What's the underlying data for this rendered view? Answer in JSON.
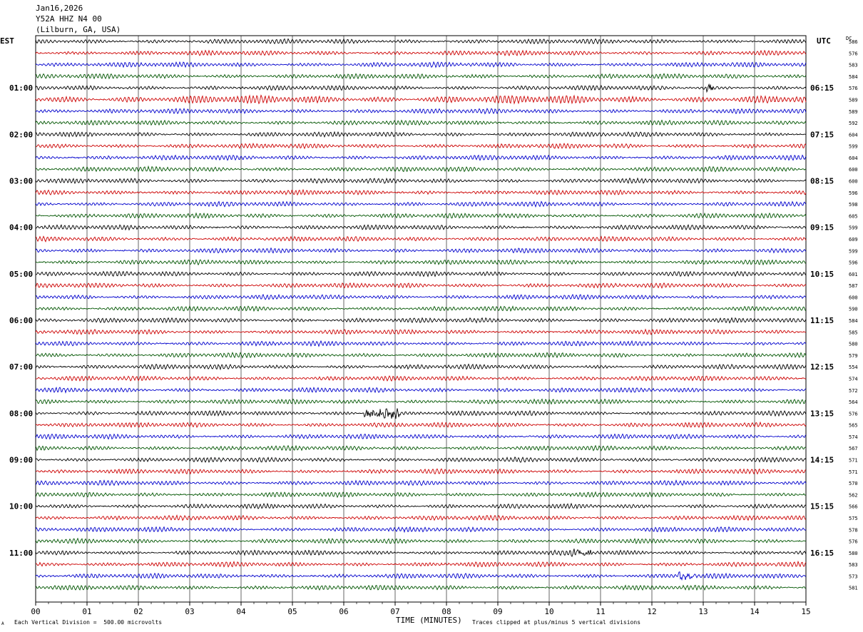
{
  "header": {
    "date": "Jan16,2026",
    "station": "Y52A HHZ N4 00",
    "location": "(Lilburn, GA, USA)"
  },
  "left_tz": "EST",
  "right_tz": "UTC",
  "dc_label": "DC",
  "footer": {
    "left_note": "Each Vertical Division =  500.00 microvolts",
    "right_note": "Traces clipped at plus/minus 5 vertical divisions",
    "corner": "A"
  },
  "colors": {
    "trace_cycle": [
      "#000000",
      "#cc0000",
      "#0000cc",
      "#005500"
    ],
    "grid": "#000000"
  },
  "chart_data": {
    "type": "line",
    "title": "",
    "xlabel": "TIME (MINUTES)",
    "ylabel": "",
    "xlim": [
      0,
      15
    ],
    "x_ticks": [
      "00",
      "01",
      "02",
      "03",
      "04",
      "05",
      "06",
      "07",
      "08",
      "09",
      "10",
      "11",
      "12",
      "13",
      "14",
      "15"
    ],
    "grid": true,
    "rows_per_hour": 4,
    "minutes_per_row": 15,
    "left_hour_labels": [
      "01:00",
      "02:00",
      "03:00",
      "04:00",
      "05:00",
      "06:00",
      "07:00",
      "08:00",
      "09:00",
      "10:00",
      "11:00"
    ],
    "right_hour_labels": [
      "06:15",
      "07:15",
      "08:15",
      "09:15",
      "10:15",
      "11:15",
      "12:15",
      "13:15",
      "14:15",
      "15:15",
      "16:15"
    ],
    "dc_offsets": [
      586,
      576,
      583,
      584,
      576,
      589,
      589,
      592,
      604,
      599,
      604,
      600,
      600,
      596,
      598,
      605,
      599,
      609,
      599,
      596,
      601,
      587,
      600,
      590,
      584,
      585,
      580,
      579,
      554,
      574,
      572,
      564,
      576,
      565,
      574,
      567,
      571,
      571,
      570,
      562,
      566,
      575,
      578,
      576,
      580,
      583,
      573,
      581
    ]
  }
}
